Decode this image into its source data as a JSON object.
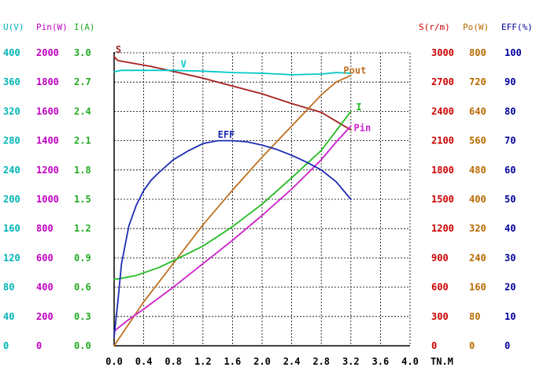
{
  "chart_data": {
    "type": "line",
    "x_ticks": [
      "0.0",
      "0.4",
      "0.8",
      "1.2",
      "1.6",
      "2.0",
      "2.4",
      "2.8",
      "3.2",
      "3.6",
      "4.0"
    ],
    "x_unit": "TN.M",
    "xlim": [
      0,
      4.0
    ],
    "grid": true,
    "left_axes": [
      {
        "header": "U(V)",
        "color": "#00b4b4",
        "ticks": [
          "0",
          "40",
          "80",
          "120",
          "160",
          "200",
          "240",
          "280",
          "320",
          "360",
          "400"
        ]
      },
      {
        "header": "Pin(W)",
        "color": "#c000c0",
        "ticks": [
          "0",
          "200",
          "400",
          "600",
          "800",
          "1000",
          "1200",
          "1400",
          "1600",
          "1800",
          "2000"
        ]
      },
      {
        "header": "I(A)",
        "color": "#22aa22",
        "ticks": [
          "0.0",
          "0.3",
          "0.6",
          "0.9",
          "1.2",
          "1.5",
          "1.8",
          "2.1",
          "2.4",
          "2.7",
          "3.0"
        ]
      }
    ],
    "right_axes": [
      {
        "header": "S(r/m)",
        "color": "#cc0000",
        "ticks": [
          "0",
          "300",
          "600",
          "900",
          "1200",
          "1500",
          "1800",
          "2100",
          "2400",
          "2700",
          "3000"
        ]
      },
      {
        "header": "Po(W)",
        "color": "#b86a00",
        "ticks": [
          "0",
          "80",
          "160",
          "240",
          "320",
          "400",
          "480",
          "560",
          "640",
          "720",
          "800"
        ]
      },
      {
        "header": "EFF(%)",
        "color": "#000099",
        "ticks": [
          "0",
          "10",
          "20",
          "30",
          "40",
          "50",
          "60",
          "70",
          "80",
          "90",
          "100"
        ]
      }
    ],
    "series": [
      {
        "name": "S",
        "color": "#a52020",
        "ylim": [
          0,
          3000
        ],
        "x": [
          0.0,
          0.05,
          0.2,
          0.5,
          0.8,
          1.2,
          1.6,
          2.0,
          2.4,
          2.8,
          3.0,
          3.2
        ],
        "y": [
          2960,
          2920,
          2900,
          2860,
          2810,
          2740,
          2660,
          2580,
          2480,
          2390,
          2300,
          2210
        ]
      },
      {
        "name": "V",
        "color": "#00c8c8",
        "ylim": [
          0,
          400
        ],
        "x": [
          0.0,
          0.1,
          0.4,
          0.8,
          1.2,
          1.6,
          2.0,
          2.4,
          2.8,
          3.0,
          3.2
        ],
        "y": [
          374,
          376,
          376,
          376,
          375,
          373,
          372,
          370,
          371,
          373,
          372
        ]
      },
      {
        "name": "Pout",
        "color": "#c07020",
        "ylim": [
          0,
          800
        ],
        "x": [
          0.0,
          0.2,
          0.4,
          0.8,
          1.2,
          1.6,
          2.0,
          2.4,
          2.8,
          3.0,
          3.2
        ],
        "y": [
          0,
          60,
          120,
          225,
          330,
          425,
          515,
          600,
          685,
          720,
          738
        ]
      },
      {
        "name": "I",
        "color": "#22bb22",
        "ylim": [
          0,
          3.0
        ],
        "x": [
          0.0,
          0.1,
          0.3,
          0.6,
          0.8,
          1.2,
          1.6,
          2.0,
          2.4,
          2.8,
          3.2
        ],
        "y": [
          0.68,
          0.69,
          0.72,
          0.8,
          0.87,
          1.02,
          1.22,
          1.45,
          1.72,
          2.0,
          2.4
        ]
      },
      {
        "name": "Pin",
        "color": "#cc20cc",
        "ylim": [
          0,
          2000
        ],
        "x": [
          0.0,
          0.2,
          0.4,
          0.8,
          1.2,
          1.6,
          2.0,
          2.4,
          2.8,
          3.0,
          3.2
        ],
        "y": [
          100,
          180,
          250,
          400,
          560,
          720,
          890,
          1070,
          1270,
          1390,
          1500
        ]
      },
      {
        "name": "EFF",
        "color": "#1e2cb4",
        "ylim": [
          0,
          100
        ],
        "x": [
          0.0,
          0.05,
          0.1,
          0.2,
          0.3,
          0.4,
          0.5,
          0.6,
          0.8,
          1.0,
          1.2,
          1.4,
          1.6,
          1.8,
          2.0,
          2.2,
          2.4,
          2.6,
          2.8,
          3.0,
          3.2
        ],
        "y": [
          3,
          15,
          28,
          41,
          48,
          53,
          56.5,
          59,
          63.5,
          66.5,
          69,
          70,
          70,
          69.6,
          68.5,
          67,
          65,
          62.7,
          60,
          56,
          50
        ]
      }
    ],
    "curve_labels": [
      {
        "text": "S",
        "x": 0.02,
        "y": 3000,
        "ylim": [
          0,
          3000
        ],
        "color": "#a52020"
      },
      {
        "text": "V",
        "x": 0.9,
        "y": 380,
        "ylim": [
          0,
          400
        ],
        "color": "#00c8c8"
      },
      {
        "text": "EFF",
        "x": 1.4,
        "y": 71,
        "ylim": [
          0,
          100
        ],
        "color": "#1e2cb4"
      },
      {
        "text": "Pout",
        "x": 3.1,
        "y": 743,
        "ylim": [
          0,
          800
        ],
        "color": "#c07020"
      },
      {
        "text": "I",
        "x": 3.27,
        "y": 2.41,
        "ylim": [
          0,
          3.0
        ],
        "color": "#22bb22"
      },
      {
        "text": "Pin",
        "x": 3.24,
        "y": 1465,
        "ylim": [
          0,
          2000
        ],
        "color": "#cc20cc"
      }
    ]
  }
}
